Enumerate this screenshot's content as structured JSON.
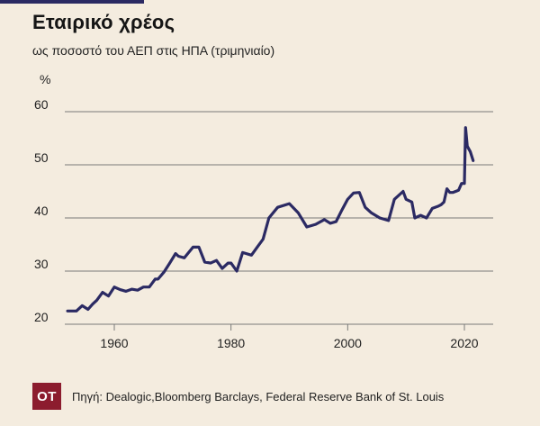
{
  "header": {
    "title": "Εταιρικό χρέος",
    "subtitle": "ως ποσοστό του ΑΕΠ  στις ΗΠΑ (τριμηνιαίο)",
    "unit": "%"
  },
  "footer": {
    "logo_text": "ΟΤ",
    "source": "Πηγή: Dealogic,Bloomberg Barclays, Federal Reserve Bank of St. Louis"
  },
  "colors": {
    "background": "#f4ecdf",
    "line": "#2b2a63",
    "gridline": "#7a7a7a",
    "logo": "#8c1c2e"
  },
  "chart_data": {
    "type": "line",
    "title": "Εταιρικό χρέος",
    "subtitle": "ως ποσοστό του ΑΕΠ  στις ΗΠΑ (τριμηνιαίο)",
    "xlabel": "",
    "ylabel": "%",
    "xlim": [
      1950,
      2025
    ],
    "ylim": [
      20,
      60
    ],
    "xticks": [
      1960,
      1980,
      2000,
      2020
    ],
    "yticks": [
      20,
      30,
      40,
      50,
      60
    ],
    "grid": "horizontal",
    "legend": "none",
    "series": [
      {
        "x": [
          1952.0,
          1953.5,
          1954.5,
          1955.5,
          1956.3,
          1957.0,
          1958.0,
          1959.0,
          1960.0,
          1961.0,
          1962.0,
          1963.0,
          1964.0,
          1965.0,
          1966.0,
          1967.0,
          1967.5,
          1968.5,
          1969.5,
          1970.5,
          1971.0,
          1972.0,
          1973.5,
          1974.5,
          1975.5,
          1976.5,
          1977.5,
          1978.5,
          1979.5,
          1980.0,
          1981.0,
          1982.0,
          1983.5,
          1984.5,
          1985.5,
          1986.5,
          1988.0,
          1990.0,
          1991.5,
          1993.0,
          1994.5,
          1996.0,
          1997.0,
          1998.0,
          1999.0,
          2000.0,
          2001.0,
          2002.0,
          2003.0,
          2004.0,
          2005.5,
          2007.0,
          2008.0,
          2009.5,
          2010.0,
          2011.0,
          2011.5,
          2012.5,
          2013.5,
          2014.5,
          2015.5,
          2016.0,
          2016.5,
          2017.0,
          2017.5,
          2018.0,
          2019.0,
          2019.5,
          2019.8,
          2020.0,
          2020.2,
          2020.5,
          2021.0,
          2021.5
        ],
        "y": [
          22.5,
          22.5,
          23.5,
          22.8,
          23.8,
          24.5,
          26.0,
          25.3,
          27.0,
          26.5,
          26.2,
          26.6,
          26.4,
          27.0,
          27.0,
          28.5,
          28.5,
          29.8,
          31.5,
          33.3,
          32.8,
          32.5,
          34.5,
          34.5,
          31.7,
          31.5,
          32.0,
          30.5,
          31.5,
          31.5,
          30.0,
          33.5,
          33.0,
          34.5,
          36.0,
          40.0,
          42.0,
          42.7,
          41.0,
          38.3,
          38.8,
          39.7,
          39.0,
          39.3,
          41.5,
          43.5,
          44.7,
          44.8,
          42.0,
          41.0,
          40.0,
          39.5,
          43.5,
          45.0,
          43.5,
          43.0,
          40.0,
          40.5,
          40.0,
          41.8,
          42.2,
          42.5,
          43.0,
          45.5,
          44.8,
          44.8,
          45.2,
          46.5,
          46.5,
          46.5,
          57.0,
          53.5,
          52.5,
          50.8
        ]
      }
    ]
  }
}
